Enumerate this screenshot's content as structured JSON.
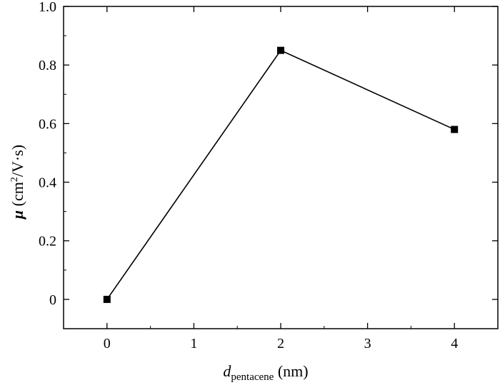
{
  "chart_data": {
    "type": "line",
    "x": [
      0,
      2,
      4
    ],
    "series": [
      {
        "values": [
          0.0,
          0.85,
          0.58
        ]
      }
    ],
    "xlim": [
      -0.5,
      4.5
    ],
    "ylim": [
      -0.1,
      1.0
    ],
    "xticks": [
      0,
      1,
      2,
      3,
      4
    ],
    "yticks": [
      0,
      0.2,
      0.4,
      0.6,
      0.8,
      1.0
    ],
    "x_tick_labels": [
      "0",
      "1",
      "2",
      "3",
      "4"
    ],
    "y_tick_labels": [
      "0",
      "0.2",
      "0.4",
      "0.6",
      "0.8",
      "1.0"
    ],
    "xlabel": {
      "symbol": "d",
      "subscript": "pentacene",
      "unit": " (nm)"
    },
    "ylabel": {
      "symbol": "μ",
      "unit_prefix": " (cm",
      "unit_sup": "2",
      "unit_suffix": "/V·s)"
    },
    "marker": "square",
    "grid": false,
    "colors": {
      "line": "#000000",
      "marker": "#000000",
      "axes": "#000000"
    }
  }
}
